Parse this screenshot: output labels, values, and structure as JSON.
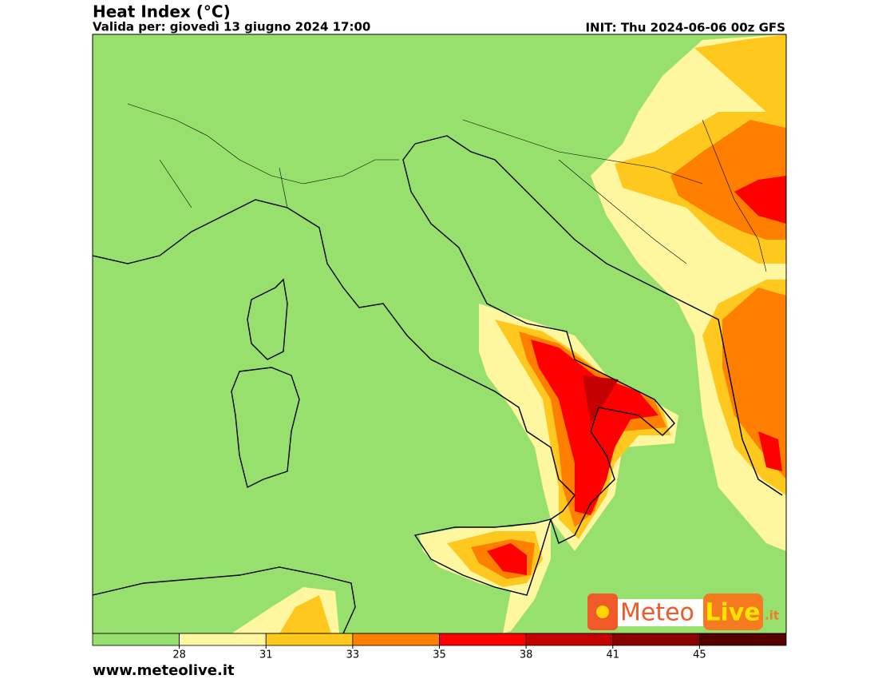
{
  "header": {
    "title": "Heat Index (°C)",
    "subtitle": "Valida per: giovedì 13 giugno 2024 17:00",
    "init": "INIT: Thu 2024-06-06 00z GFS"
  },
  "legend": {
    "colors": [
      "#98e06e",
      "#fff6a0",
      "#ffc81e",
      "#ff7f00",
      "#ff0000",
      "#c40000",
      "#8a0000",
      "#550000"
    ],
    "ticks": [
      28,
      31,
      33,
      35,
      38,
      41,
      45
    ]
  },
  "logo": {
    "part1": "Meteo",
    "part2": "Live",
    "suffix": ".it"
  },
  "footer": {
    "website": "www.meteolive.it"
  }
}
